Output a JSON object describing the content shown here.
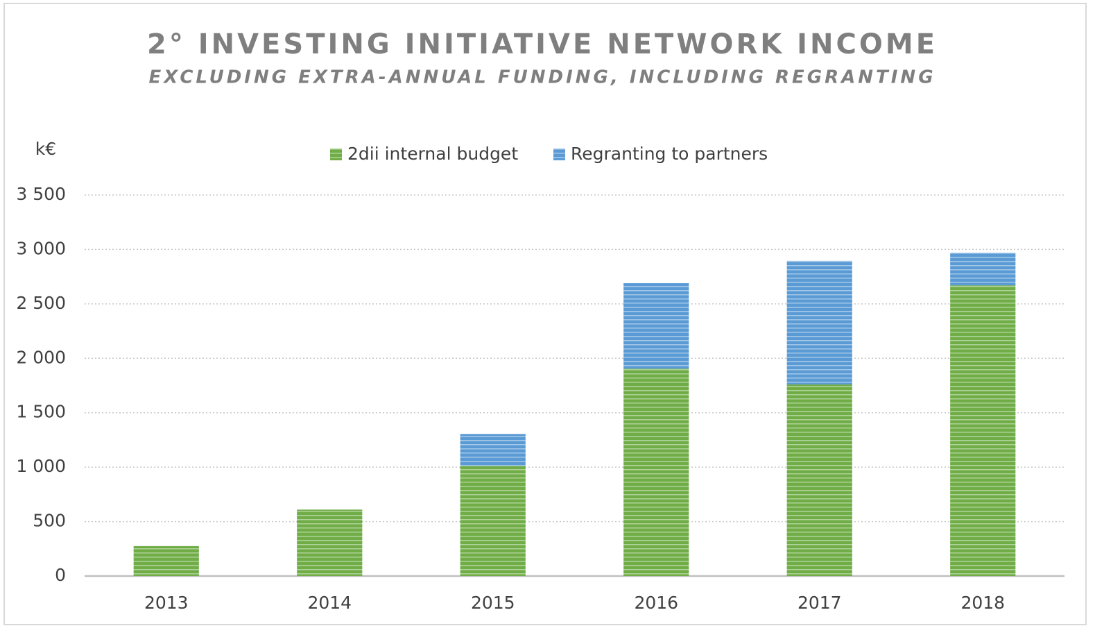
{
  "chart_data": {
    "type": "stacked_bar",
    "title": "2° INVESTING INITIATIVE NETWORK INCOME",
    "subtitle": "EXCLUDING EXTRA-ANNUAL FUNDING, INCLUDING REGRANTING",
    "y_label": "k€",
    "categories": [
      "2013",
      "2014",
      "2015",
      "2016",
      "2017",
      "2018"
    ],
    "series": [
      {
        "name": "2dii internal budget",
        "color": "#70ad47",
        "values": [
          275,
          610,
          1010,
          1905,
          1760,
          2670
        ]
      },
      {
        "name": "Regranting to partners",
        "color": "#5b9bd5",
        "values": [
          0,
          0,
          295,
          785,
          1135,
          300
        ]
      }
    ],
    "ylim": [
      0,
      3500
    ],
    "yticks": [
      0,
      500,
      {
        "value": 1000,
        "label": "1 000"
      },
      {
        "value": 1500,
        "label": "1 500"
      },
      {
        "value": 2000,
        "label": "2 000"
      },
      {
        "value": 2500,
        "label": "2 500"
      },
      {
        "value": 3000,
        "label": "3 000"
      },
      {
        "value": 3500,
        "label": "3 500"
      }
    ],
    "grid": true,
    "legend": "top"
  }
}
